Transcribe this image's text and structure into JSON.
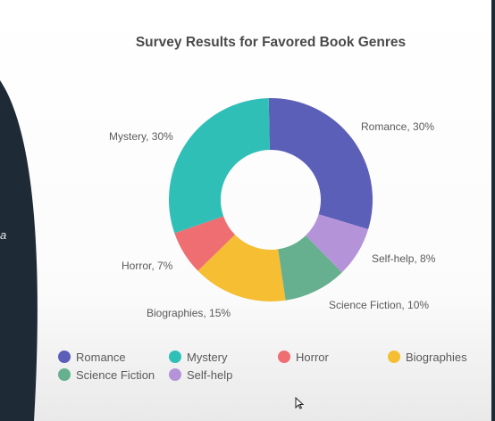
{
  "panel": {
    "partial_text": "a"
  },
  "chart_data": {
    "type": "pie",
    "title": "Survey Results for Favored Book Genres",
    "slices": [
      {
        "label": "Romance",
        "value": 30,
        "data_label": "Romance, 30%",
        "color": "#5b5fb8"
      },
      {
        "label": "Self-help",
        "value": 8,
        "data_label": "Self-help, 8%",
        "color": "#b593d9"
      },
      {
        "label": "Science Fiction",
        "value": 10,
        "data_label": "Science Fiction, 10%",
        "color": "#66b08f"
      },
      {
        "label": "Biographies",
        "value": 15,
        "data_label": "Biographies, 15%",
        "color": "#f5be33"
      },
      {
        "label": "Horror",
        "value": 7,
        "data_label": "Horror, 7%",
        "color": "#ee6e72"
      },
      {
        "label": "Mystery",
        "value": 30,
        "data_label": "Mystery, 30%",
        "color": "#2fbfb7"
      }
    ],
    "donut": true,
    "legend_position": "bottom",
    "legend_order": [
      "Romance",
      "Mystery",
      "Horror",
      "Biographies",
      "Science Fiction",
      "Self-help"
    ]
  },
  "colors": {
    "dark_panel": "#1e2a36",
    "text": "#555555",
    "title": "#4a4a4a"
  },
  "icons": {
    "cursor": "mouse-cursor-icon"
  }
}
